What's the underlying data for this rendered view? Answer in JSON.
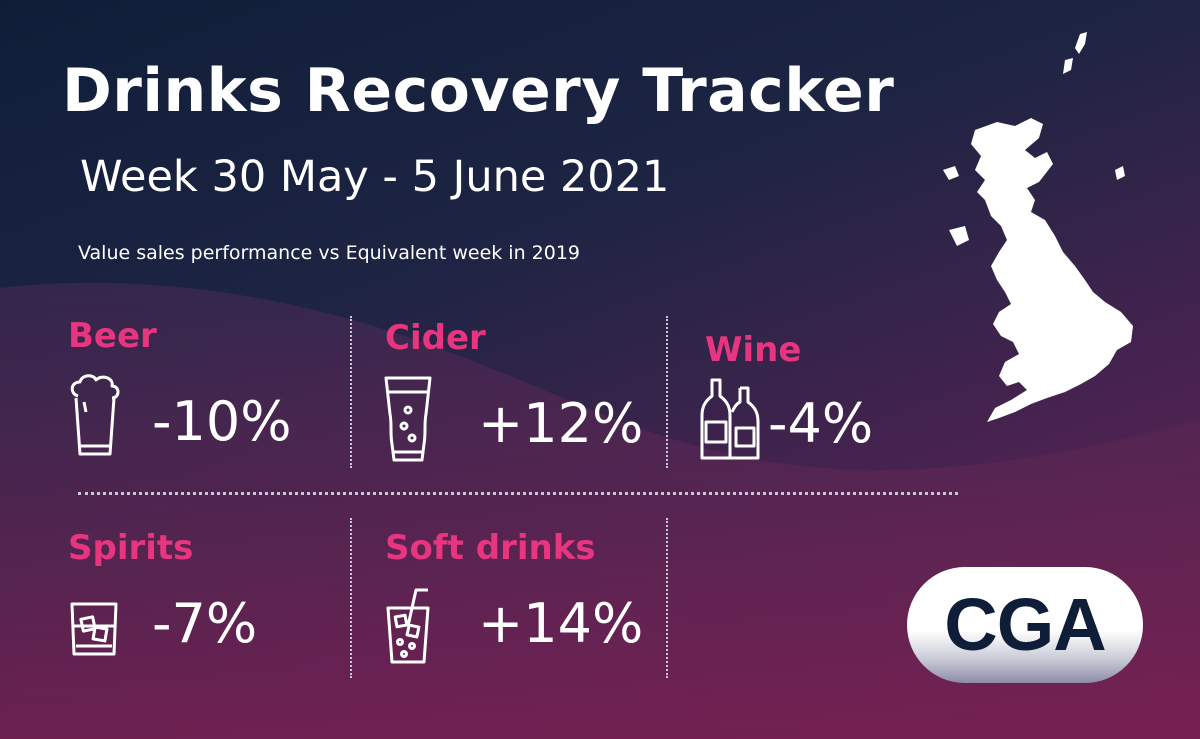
{
  "header": {
    "title": "Drinks Recovery Tracker",
    "subtitle": "Week 30 May - 5 June 2021",
    "note": "Value sales performance vs Equivalent week in 2019"
  },
  "categories": [
    {
      "label": "Beer",
      "value": "-10%",
      "icon": "beer-glass-icon"
    },
    {
      "label": "Cider",
      "value": "+12%",
      "icon": "pint-glass-icon"
    },
    {
      "label": "Wine",
      "value": "-4%",
      "icon": "wine-bottles-icon"
    },
    {
      "label": "Spirits",
      "value": "-7%",
      "icon": "whisky-glass-icon"
    },
    {
      "label": "Soft drinks",
      "value": "+14%",
      "icon": "soft-drink-glass-icon"
    }
  ],
  "logo": {
    "text": "CGA"
  },
  "map": {
    "icon": "uk-map-icon"
  },
  "colors": {
    "accent": "#e8357f",
    "background_top": "#0f1e38",
    "background_bottom": "#6e2150",
    "text": "#ffffff"
  }
}
